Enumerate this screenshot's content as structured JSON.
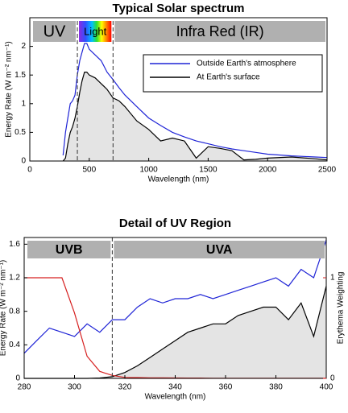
{
  "chart_data": [
    {
      "type": "line",
      "title": "Typical Solar spectrum",
      "x_label": "Wavelength (nm)",
      "y_label": "Energy Rate (W m⁻² nm⁻¹)",
      "bands": [
        "UV",
        "Light",
        "Infra Red (IR)"
      ],
      "markers": [
        400,
        700
      ],
      "x": [
        280,
        300,
        320,
        340,
        360,
        380,
        400,
        420,
        440,
        460,
        480,
        500,
        550,
        600,
        650,
        700,
        750,
        800,
        900,
        1000,
        1100,
        1200,
        1300,
        1400,
        1500,
        1600,
        1700,
        1800,
        1900,
        2000,
        2200,
        2400,
        2500
      ],
      "series": [
        {
          "name": "Outside Earth's atmosphere",
          "color": "#1f24d6",
          "values": [
            0.1,
            0.5,
            0.75,
            1.0,
            1.05,
            1.15,
            1.5,
            1.75,
            1.9,
            2.05,
            2.05,
            1.95,
            1.85,
            1.75,
            1.55,
            1.42,
            1.28,
            1.15,
            0.95,
            0.75,
            0.62,
            0.5,
            0.42,
            0.35,
            0.3,
            0.25,
            0.21,
            0.18,
            0.15,
            0.12,
            0.09,
            0.07,
            0.06
          ]
        },
        {
          "name": "At Earth's surface",
          "color": "#000000",
          "fill": "#e4e4e4",
          "values": [
            0,
            0.05,
            0.3,
            0.5,
            0.6,
            0.75,
            0.95,
            1.2,
            1.4,
            1.55,
            1.55,
            1.5,
            1.45,
            1.35,
            1.25,
            1.1,
            1.05,
            0.95,
            0.7,
            0.55,
            0.35,
            0.4,
            0.35,
            0.05,
            0.25,
            0.22,
            0.18,
            0.02,
            0.03,
            0.05,
            0.07,
            0.04,
            0.02
          ]
        }
      ],
      "legend": "top-right",
      "xlim": [
        0,
        2500
      ],
      "xticks": [
        0,
        500,
        1000,
        1500,
        2000,
        2500
      ],
      "ylim": [
        0,
        2.5
      ],
      "yticks": [
        0,
        0.5,
        1,
        1.5,
        2
      ]
    },
    {
      "type": "line",
      "title": "Detail of UV Region",
      "x_label": "Wavelength (nm)",
      "y_label": "Energy Rate (W m⁻² nm⁻¹)",
      "y2_label": "Erythema Weighting",
      "bands": [
        "UVB",
        "UVA"
      ],
      "markers": [
        315
      ],
      "x": [
        280,
        285,
        290,
        295,
        300,
        305,
        310,
        315,
        320,
        325,
        330,
        335,
        340,
        345,
        350,
        355,
        360,
        365,
        370,
        375,
        380,
        385,
        390,
        395,
        400
      ],
      "series": [
        {
          "color": "#1f24d6",
          "values": [
            0.3,
            0.45,
            0.6,
            0.55,
            0.5,
            0.65,
            0.55,
            0.7,
            0.7,
            0.85,
            0.95,
            0.9,
            0.95,
            0.95,
            1.0,
            0.95,
            1.0,
            1.05,
            1.1,
            1.15,
            1.2,
            1.1,
            1.3,
            1.2,
            1.65
          ]
        },
        {
          "color": "#000000",
          "fill": "#e4e4e4",
          "values": [
            0,
            0,
            0,
            0,
            0,
            0,
            0.005,
            0.02,
            0.07,
            0.15,
            0.25,
            0.35,
            0.45,
            0.55,
            0.6,
            0.65,
            0.65,
            0.75,
            0.8,
            0.85,
            0.85,
            0.7,
            0.9,
            0.5,
            1.1
          ]
        },
        {
          "color": "#d62020",
          "axis": "y2",
          "values": [
            1,
            1,
            1,
            1,
            0.65,
            0.22,
            0.07,
            0.03,
            0.01,
            0.008,
            0.006,
            0.005,
            0.004,
            0.003,
            0.003,
            0.002,
            0.002,
            0.002,
            0.002,
            0.001,
            0.001,
            0.001,
            0.001,
            0.001,
            0.001
          ]
        }
      ],
      "xlim": [
        280,
        400
      ],
      "xticks": [
        280,
        300,
        320,
        340,
        360,
        380,
        400
      ],
      "ylim": [
        0,
        1.68
      ],
      "yticks": [
        0,
        0.4,
        0.8,
        1.2,
        1.6
      ],
      "y2lim": [
        0,
        1.4
      ],
      "y2ticks": [
        0,
        1
      ],
      "y2_color": "#d62020"
    }
  ]
}
